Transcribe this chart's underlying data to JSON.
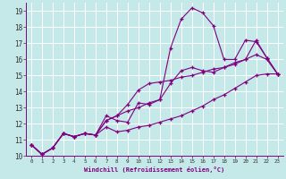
{
  "xlabel": "Windchill (Refroidissement éolien,°C)",
  "bg_color": "#c5e8e8",
  "line_color": "#800080",
  "grid_color": "#ffffff",
  "xlim": [
    -0.5,
    23.5
  ],
  "ylim": [
    10,
    19.5
  ],
  "xticks": [
    0,
    1,
    2,
    3,
    4,
    5,
    6,
    7,
    8,
    9,
    10,
    11,
    12,
    13,
    14,
    15,
    16,
    17,
    18,
    19,
    20,
    21,
    22,
    23
  ],
  "yticks": [
    10,
    11,
    12,
    13,
    14,
    15,
    16,
    17,
    18,
    19
  ],
  "series": [
    {
      "x": [
        0,
        1,
        2,
        3,
        4,
        5,
        6,
        7,
        8,
        9,
        10,
        11,
        12,
        13,
        14,
        15,
        16,
        17,
        18,
        19,
        20,
        21,
        22,
        23
      ],
      "y": [
        10.7,
        10.1,
        10.5,
        11.4,
        11.2,
        11.4,
        11.3,
        12.5,
        12.2,
        12.1,
        13.3,
        13.2,
        13.5,
        16.7,
        18.5,
        19.2,
        18.9,
        18.1,
        16.0,
        16.0,
        17.2,
        17.1,
        16.1,
        15.1
      ]
    },
    {
      "x": [
        0,
        1,
        2,
        3,
        4,
        5,
        6,
        7,
        8,
        9,
        10,
        11,
        12,
        13,
        14,
        15,
        16,
        17,
        18,
        19,
        20,
        21,
        22,
        23
      ],
      "y": [
        10.7,
        10.1,
        10.5,
        11.4,
        11.2,
        11.4,
        11.3,
        11.8,
        11.5,
        11.6,
        11.8,
        11.9,
        12.1,
        12.3,
        12.5,
        12.8,
        13.1,
        13.5,
        13.8,
        14.2,
        14.6,
        15.0,
        15.1,
        15.1
      ]
    },
    {
      "x": [
        0,
        1,
        2,
        3,
        4,
        5,
        6,
        7,
        8,
        9,
        10,
        11,
        12,
        13,
        14,
        15,
        16,
        17,
        18,
        19,
        20,
        21,
        22,
        23
      ],
      "y": [
        10.7,
        10.1,
        10.5,
        11.4,
        11.2,
        11.4,
        11.3,
        12.2,
        12.5,
        13.2,
        14.1,
        14.5,
        14.6,
        14.7,
        14.9,
        15.0,
        15.2,
        15.4,
        15.5,
        15.7,
        16.0,
        16.3,
        16.0,
        15.1
      ]
    },
    {
      "x": [
        0,
        1,
        2,
        3,
        4,
        5,
        6,
        7,
        8,
        9,
        10,
        11,
        12,
        13,
        14,
        15,
        16,
        17,
        18,
        19,
        20,
        21,
        22,
        23
      ],
      "y": [
        10.7,
        10.1,
        10.5,
        11.4,
        11.2,
        11.4,
        11.3,
        12.2,
        12.5,
        12.8,
        13.0,
        13.3,
        13.5,
        14.5,
        15.3,
        15.5,
        15.3,
        15.2,
        15.5,
        15.8,
        16.0,
        17.2,
        16.1,
        15.1
      ]
    }
  ]
}
